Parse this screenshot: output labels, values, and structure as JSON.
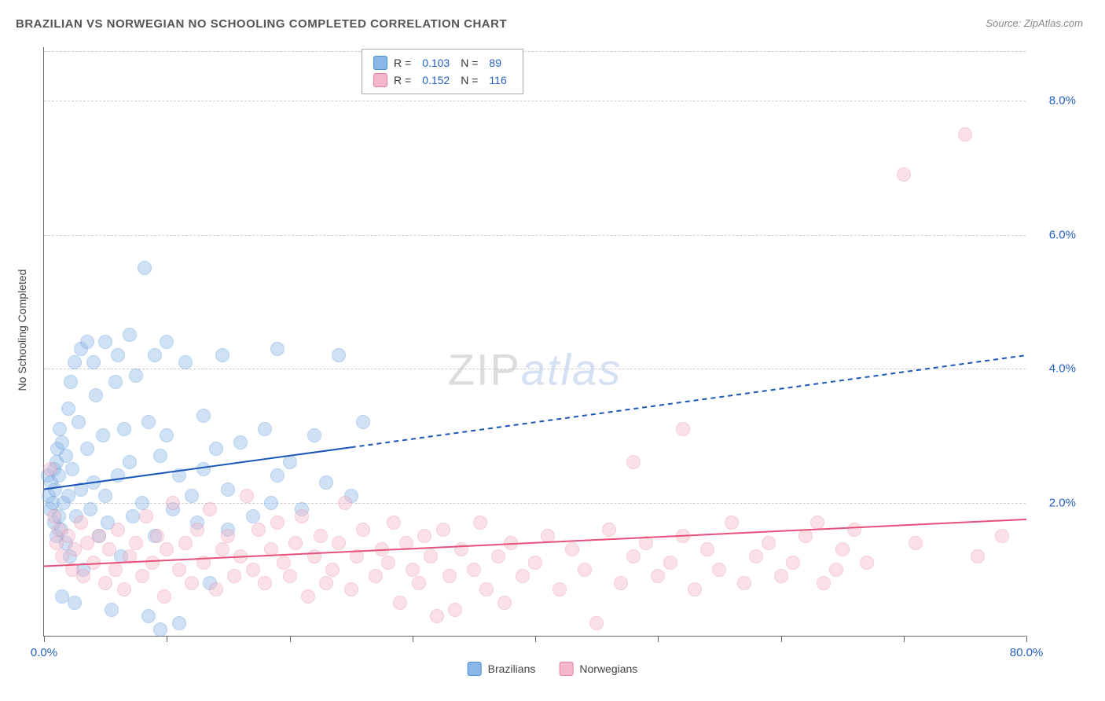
{
  "title": "BRAZILIAN VS NORWEGIAN NO SCHOOLING COMPLETED CORRELATION CHART",
  "source_prefix": "Source: ",
  "source": "ZipAtlas.com",
  "y_axis_label": "No Schooling Completed",
  "watermark": {
    "part1": "ZIP",
    "part2": "atlas"
  },
  "chart": {
    "type": "scatter",
    "xlim": [
      0,
      80
    ],
    "ylim": [
      0,
      8.8
    ],
    "x_ticks": [
      0,
      10,
      20,
      30,
      40,
      50,
      60,
      70,
      80
    ],
    "x_tick_labels": {
      "0": "0.0%",
      "80": "80.0%"
    },
    "y_ticks": [
      2.0,
      4.0,
      6.0,
      8.0
    ],
    "y_tick_labels": [
      "2.0%",
      "4.0%",
      "6.0%",
      "8.0%"
    ],
    "y_tick_color": "#2560c4",
    "x_label_color_left": "#2560c4",
    "x_label_color_right": "#2560c4",
    "grid_color": "#cccccc",
    "axis_color": "#666666",
    "background_color": "#ffffff",
    "marker_radius": 9,
    "marker_opacity": 0.4,
    "marker_stroke_opacity": 0.7,
    "series": [
      {
        "name": "Brazilians",
        "fill_color": "#8ab6e8",
        "stroke_color": "#4a8cd8",
        "trend": {
          "color": "#1a56b8",
          "solid_until_x": 25,
          "y_at_x0": 2.2,
          "y_at_xmax": 4.2,
          "width": 2
        },
        "stats": {
          "r_label": "R =",
          "r": "0.103",
          "n_label": "N =",
          "n": "89"
        },
        "points": [
          [
            0.3,
            2.4
          ],
          [
            0.4,
            2.1
          ],
          [
            0.5,
            1.9
          ],
          [
            0.6,
            2.3
          ],
          [
            0.7,
            2.0
          ],
          [
            0.8,
            2.5
          ],
          [
            0.8,
            1.7
          ],
          [
            0.9,
            2.2
          ],
          [
            1.0,
            2.6
          ],
          [
            1.0,
            1.5
          ],
          [
            1.1,
            2.8
          ],
          [
            1.2,
            1.8
          ],
          [
            1.2,
            2.4
          ],
          [
            1.3,
            3.1
          ],
          [
            1.4,
            1.6
          ],
          [
            1.5,
            2.9
          ],
          [
            1.5,
            0.6
          ],
          [
            1.6,
            2.0
          ],
          [
            1.8,
            1.4
          ],
          [
            1.8,
            2.7
          ],
          [
            2.0,
            3.4
          ],
          [
            2.0,
            2.1
          ],
          [
            2.1,
            1.2
          ],
          [
            2.2,
            3.8
          ],
          [
            2.3,
            2.5
          ],
          [
            2.5,
            4.1
          ],
          [
            2.5,
            0.5
          ],
          [
            2.6,
            1.8
          ],
          [
            2.8,
            3.2
          ],
          [
            3.0,
            2.2
          ],
          [
            3.0,
            4.3
          ],
          [
            3.2,
            1.0
          ],
          [
            3.5,
            2.8
          ],
          [
            3.5,
            4.4
          ],
          [
            3.8,
            1.9
          ],
          [
            4.0,
            4.1
          ],
          [
            4.0,
            2.3
          ],
          [
            4.2,
            3.6
          ],
          [
            4.5,
            1.5
          ],
          [
            4.8,
            3.0
          ],
          [
            5.0,
            2.1
          ],
          [
            5.0,
            4.4
          ],
          [
            5.2,
            1.7
          ],
          [
            5.5,
            0.4
          ],
          [
            5.8,
            3.8
          ],
          [
            6.0,
            2.4
          ],
          [
            6.0,
            4.2
          ],
          [
            6.3,
            1.2
          ],
          [
            6.5,
            3.1
          ],
          [
            7.0,
            4.5
          ],
          [
            7.0,
            2.6
          ],
          [
            7.2,
            1.8
          ],
          [
            7.5,
            3.9
          ],
          [
            8.0,
            2.0
          ],
          [
            8.2,
            5.5
          ],
          [
            8.5,
            3.2
          ],
          [
            8.5,
            0.3
          ],
          [
            9.0,
            4.2
          ],
          [
            9.0,
            1.5
          ],
          [
            9.5,
            2.7
          ],
          [
            9.5,
            0.1
          ],
          [
            10.0,
            3.0
          ],
          [
            10.0,
            4.4
          ],
          [
            10.5,
            1.9
          ],
          [
            11.0,
            2.4
          ],
          [
            11.0,
            0.2
          ],
          [
            11.5,
            4.1
          ],
          [
            12.0,
            2.1
          ],
          [
            12.5,
            1.7
          ],
          [
            13.0,
            3.3
          ],
          [
            13.0,
            2.5
          ],
          [
            13.5,
            0.8
          ],
          [
            14.0,
            2.8
          ],
          [
            14.5,
            4.2
          ],
          [
            15.0,
            1.6
          ],
          [
            15.0,
            2.2
          ],
          [
            16.0,
            2.9
          ],
          [
            17.0,
            1.8
          ],
          [
            18.0,
            3.1
          ],
          [
            18.5,
            2.0
          ],
          [
            19.0,
            4.3
          ],
          [
            19.0,
            2.4
          ],
          [
            20.0,
            2.6
          ],
          [
            21.0,
            1.9
          ],
          [
            22.0,
            3.0
          ],
          [
            23.0,
            2.3
          ],
          [
            24.0,
            4.2
          ],
          [
            25.0,
            2.1
          ],
          [
            26.0,
            3.2
          ]
        ]
      },
      {
        "name": "Norwegians",
        "fill_color": "#f4b6c8",
        "stroke_color": "#e8809f",
        "trend": {
          "color": "#e8507a",
          "solid_until_x": 80,
          "y_at_x0": 1.05,
          "y_at_xmax": 1.75,
          "width": 2
        },
        "stats": {
          "r_label": "R =",
          "r": "0.152",
          "n_label": "N =",
          "n": "116"
        },
        "points": [
          [
            0.5,
            2.5
          ],
          [
            0.8,
            1.8
          ],
          [
            1.0,
            1.4
          ],
          [
            1.2,
            1.6
          ],
          [
            1.5,
            1.2
          ],
          [
            2.0,
            1.5
          ],
          [
            2.3,
            1.0
          ],
          [
            2.5,
            1.3
          ],
          [
            3.0,
            1.7
          ],
          [
            3.2,
            0.9
          ],
          [
            3.5,
            1.4
          ],
          [
            4.0,
            1.1
          ],
          [
            4.5,
            1.5
          ],
          [
            5.0,
            0.8
          ],
          [
            5.3,
            1.3
          ],
          [
            5.8,
            1.0
          ],
          [
            6.0,
            1.6
          ],
          [
            6.5,
            0.7
          ],
          [
            7.0,
            1.2
          ],
          [
            7.5,
            1.4
          ],
          [
            8.0,
            0.9
          ],
          [
            8.3,
            1.8
          ],
          [
            8.8,
            1.1
          ],
          [
            9.2,
            1.5
          ],
          [
            9.8,
            0.6
          ],
          [
            10.0,
            1.3
          ],
          [
            10.5,
            2.0
          ],
          [
            11.0,
            1.0
          ],
          [
            11.5,
            1.4
          ],
          [
            12.0,
            0.8
          ],
          [
            12.5,
            1.6
          ],
          [
            13.0,
            1.1
          ],
          [
            13.5,
            1.9
          ],
          [
            14.0,
            0.7
          ],
          [
            14.5,
            1.3
          ],
          [
            15.0,
            1.5
          ],
          [
            15.5,
            0.9
          ],
          [
            16.0,
            1.2
          ],
          [
            16.5,
            2.1
          ],
          [
            17.0,
            1.0
          ],
          [
            17.5,
            1.6
          ],
          [
            18.0,
            0.8
          ],
          [
            18.5,
            1.3
          ],
          [
            19.0,
            1.7
          ],
          [
            19.5,
            1.1
          ],
          [
            20.0,
            0.9
          ],
          [
            20.5,
            1.4
          ],
          [
            21.0,
            1.8
          ],
          [
            21.5,
            0.6
          ],
          [
            22.0,
            1.2
          ],
          [
            22.5,
            1.5
          ],
          [
            23.0,
            0.8
          ],
          [
            23.5,
            1.0
          ],
          [
            24.0,
            1.4
          ],
          [
            24.5,
            2.0
          ],
          [
            25.0,
            0.7
          ],
          [
            25.5,
            1.2
          ],
          [
            26.0,
            1.6
          ],
          [
            27.0,
            0.9
          ],
          [
            27.5,
            1.3
          ],
          [
            28.0,
            1.1
          ],
          [
            28.5,
            1.7
          ],
          [
            29.0,
            0.5
          ],
          [
            29.5,
            1.4
          ],
          [
            30.0,
            1.0
          ],
          [
            30.5,
            0.8
          ],
          [
            31.0,
            1.5
          ],
          [
            31.5,
            1.2
          ],
          [
            32.0,
            0.3
          ],
          [
            32.5,
            1.6
          ],
          [
            33.0,
            0.9
          ],
          [
            33.5,
            0.4
          ],
          [
            34.0,
            1.3
          ],
          [
            35.0,
            1.0
          ],
          [
            35.5,
            1.7
          ],
          [
            36.0,
            0.7
          ],
          [
            37.0,
            1.2
          ],
          [
            37.5,
            0.5
          ],
          [
            38.0,
            1.4
          ],
          [
            39.0,
            0.9
          ],
          [
            40.0,
            1.1
          ],
          [
            41.0,
            1.5
          ],
          [
            42.0,
            0.7
          ],
          [
            43.0,
            1.3
          ],
          [
            44.0,
            1.0
          ],
          [
            45.0,
            0.2
          ],
          [
            46.0,
            1.6
          ],
          [
            47.0,
            0.8
          ],
          [
            48.0,
            2.6
          ],
          [
            48.0,
            1.2
          ],
          [
            49.0,
            1.4
          ],
          [
            50.0,
            0.9
          ],
          [
            51.0,
            1.1
          ],
          [
            52.0,
            3.1
          ],
          [
            52.0,
            1.5
          ],
          [
            53.0,
            0.7
          ],
          [
            54.0,
            1.3
          ],
          [
            55.0,
            1.0
          ],
          [
            56.0,
            1.7
          ],
          [
            57.0,
            0.8
          ],
          [
            58.0,
            1.2
          ],
          [
            59.0,
            1.4
          ],
          [
            60.0,
            0.9
          ],
          [
            61.0,
            1.1
          ],
          [
            62.0,
            1.5
          ],
          [
            63.0,
            1.7
          ],
          [
            63.5,
            0.8
          ],
          [
            64.5,
            1.0
          ],
          [
            65.0,
            1.3
          ],
          [
            66.0,
            1.6
          ],
          [
            67.0,
            1.1
          ],
          [
            70.0,
            6.9
          ],
          [
            71.0,
            1.4
          ],
          [
            75.0,
            7.5
          ],
          [
            76.0,
            1.2
          ],
          [
            78.0,
            1.5
          ]
        ]
      }
    ]
  },
  "bottom_legend": [
    {
      "label": "Brazilians",
      "fill": "#8ab6e8",
      "stroke": "#4a8cd8"
    },
    {
      "label": "Norwegians",
      "fill": "#f4b6c8",
      "stroke": "#e8809f"
    }
  ]
}
